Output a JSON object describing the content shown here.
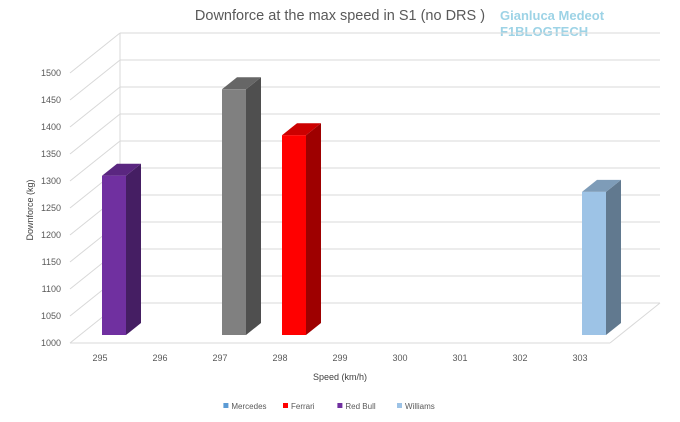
{
  "chart_data": {
    "type": "bar",
    "title": "Downforce at the max speed in S1 (no DRS )",
    "watermark": [
      "Gianluca Medeot",
      "F1BLOGTECH"
    ],
    "xlabel": "Speed (km/h)",
    "ylabel": "Downforce (kg)",
    "categories": [
      "295",
      "296",
      "297",
      "298",
      "299",
      "300",
      "301",
      "302",
      "303"
    ],
    "yticks": [
      "1000",
      "1050",
      "1100",
      "1150",
      "1200",
      "1250",
      "1300",
      "1350",
      "1400",
      "1450",
      "1500"
    ],
    "ylim": [
      1000,
      1500
    ],
    "grid": true,
    "legend_position": "bottom",
    "series": [
      {
        "name": "Mercedes",
        "color": "#5B9BD5",
        "points": []
      },
      {
        "name": "Ferrari",
        "color": "#FF0000",
        "points": [
          {
            "x": "298",
            "y": 1370
          }
        ]
      },
      {
        "name": "Red Bull",
        "color": "#7030A0",
        "points": [
          {
            "x": "295",
            "y": 1295
          }
        ]
      },
      {
        "name": "Williams",
        "color": "#9DC3E6",
        "points": [
          {
            "x": "303",
            "y": 1265
          }
        ]
      }
    ],
    "unlisted_bars": [
      {
        "x": "297",
        "y": 1455,
        "color": "#808080"
      }
    ]
  }
}
